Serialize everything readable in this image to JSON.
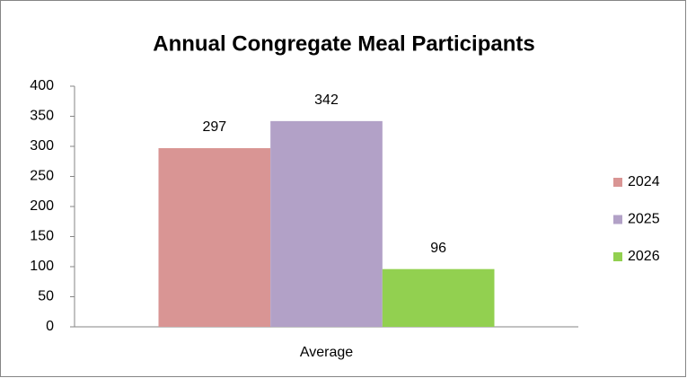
{
  "chart_data": {
    "type": "bar",
    "title": "Annual Congregate Meal Participants",
    "categories": [
      "Average"
    ],
    "series": [
      {
        "name": "2024",
        "color": "#d99594",
        "values": [
          297
        ]
      },
      {
        "name": "2025",
        "color": "#b2a1c7",
        "values": [
          342
        ]
      },
      {
        "name": "2026",
        "color": "#92d050",
        "values": [
          96
        ]
      }
    ],
    "ylim": [
      0,
      400
    ],
    "yticks": [
      0,
      50,
      100,
      150,
      200,
      250,
      300,
      350,
      400
    ],
    "grid": false,
    "legend": "right"
  }
}
